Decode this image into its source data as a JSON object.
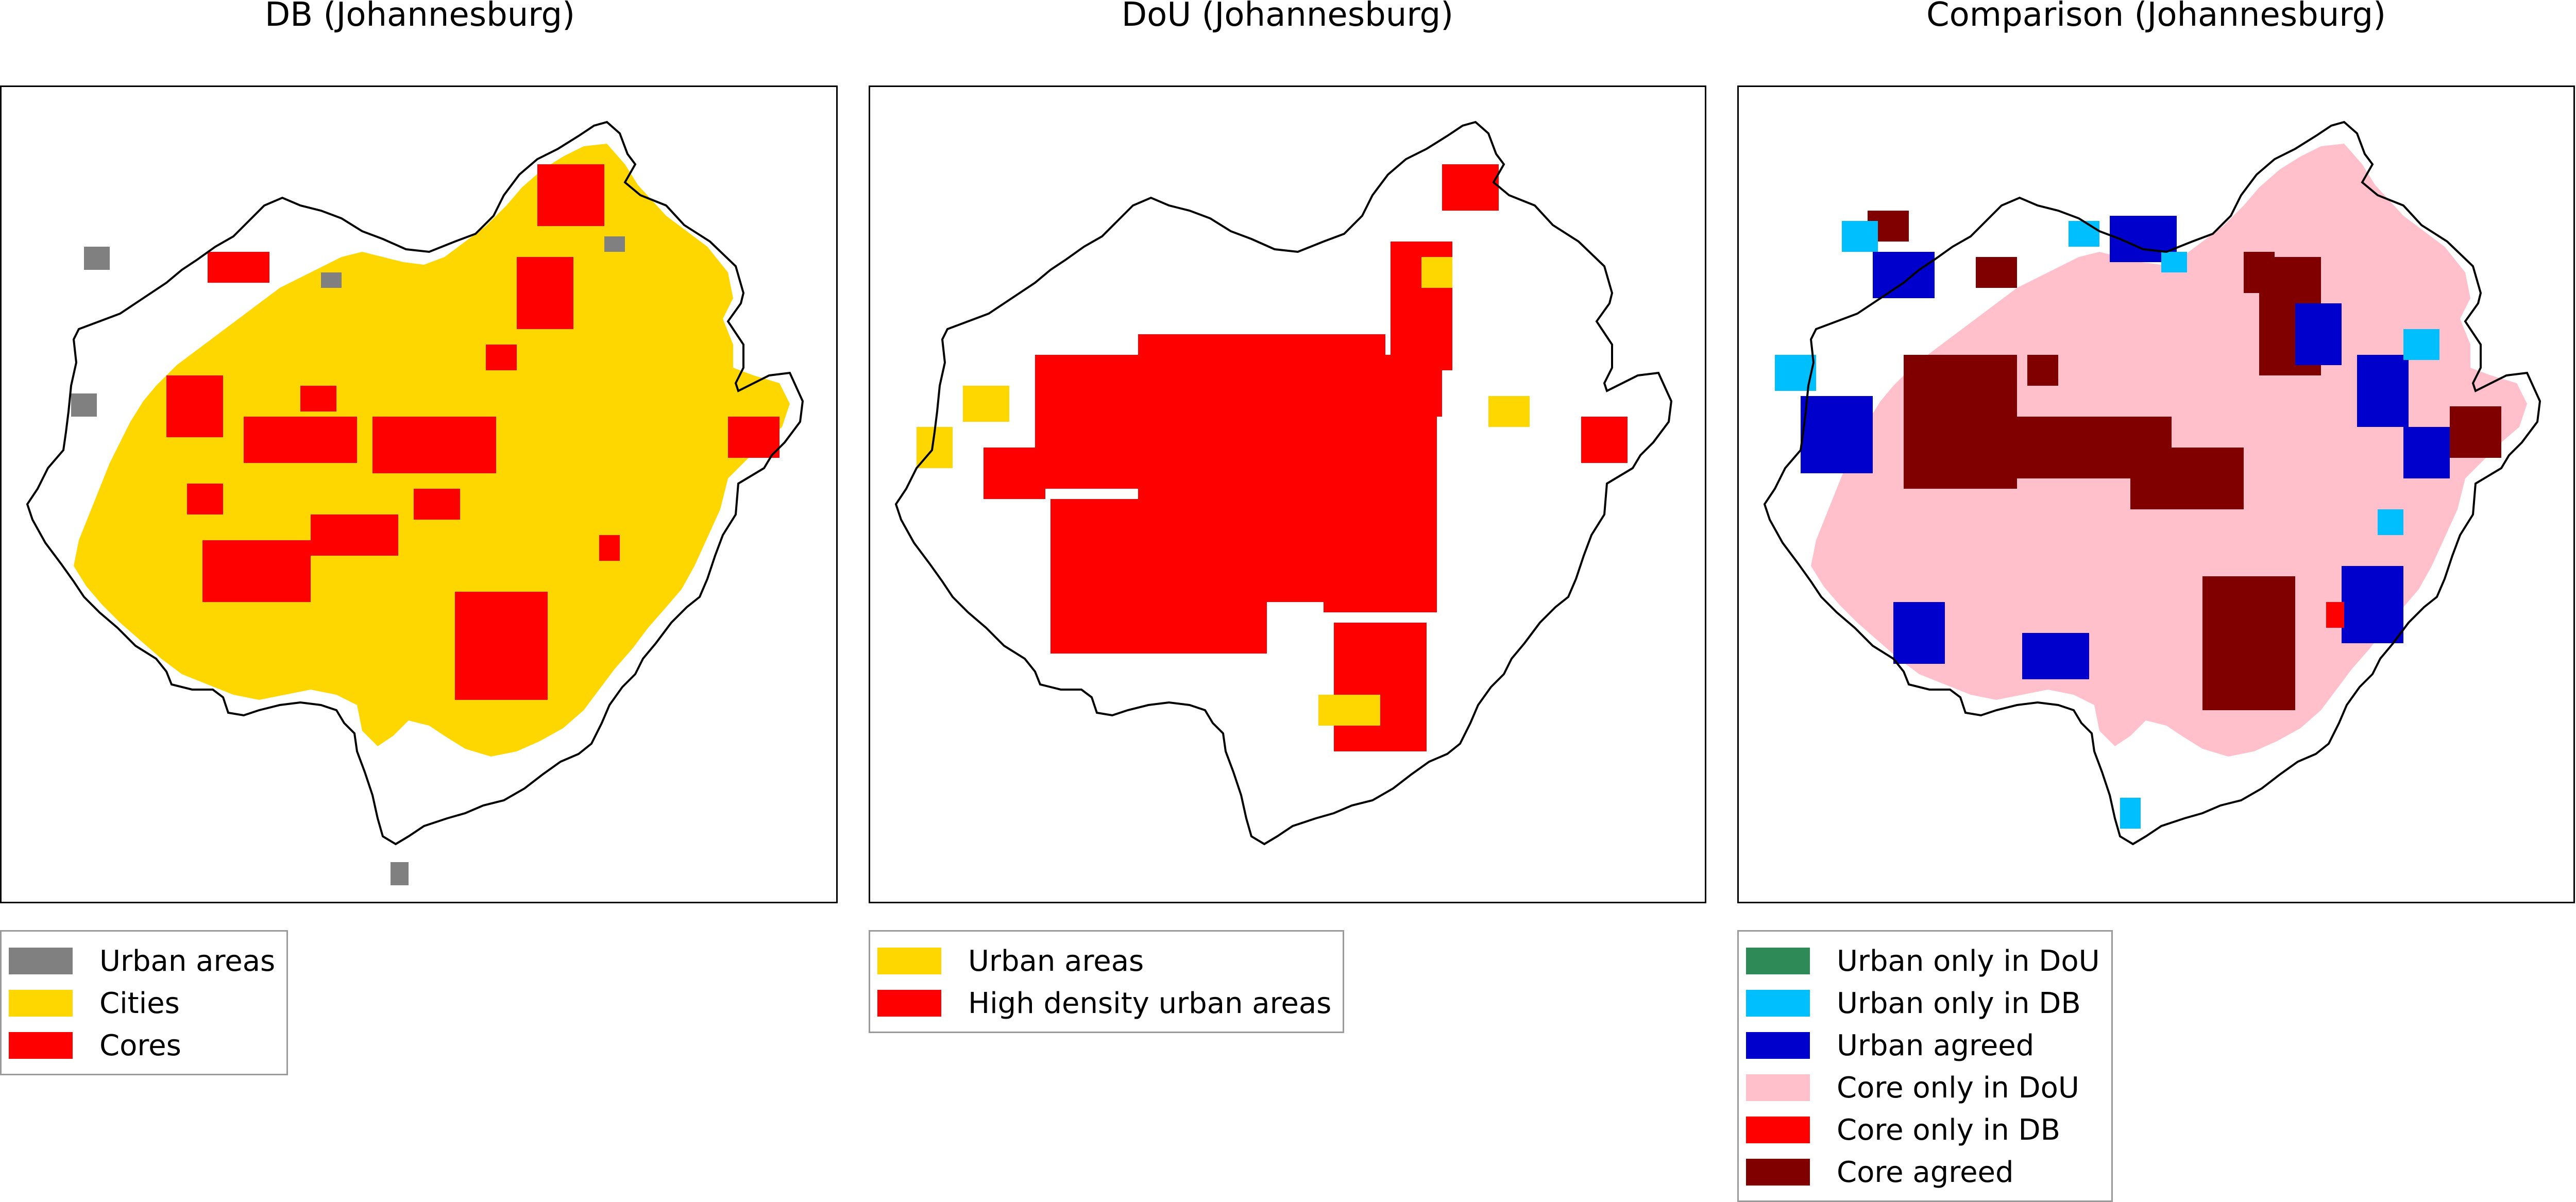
{
  "panels": [
    {
      "title": "DB (Johannesburg)",
      "legend": [
        {
          "label": "Urban areas",
          "color": "#808080"
        },
        {
          "label": "Cities",
          "color": "#ffd700"
        },
        {
          "label": "Cores",
          "color": "#ff0000"
        }
      ]
    },
    {
      "title": "DoU (Johannesburg)",
      "legend": [
        {
          "label": "Urban areas",
          "color": "#ffd700"
        },
        {
          "label": "High density urban areas",
          "color": "#ff0000"
        }
      ]
    },
    {
      "title": "Comparison (Johannesburg)",
      "legend": [
        {
          "label": "Urban only in DoU",
          "color": "#2e8b57"
        },
        {
          "label": "Urban only in DB",
          "color": "#00bfff"
        },
        {
          "label": "Urban agreed",
          "color": "#0000cd"
        },
        {
          "label": "Core only in DoU",
          "color": "#ffc0cb"
        },
        {
          "label": "Core only in DB",
          "color": "#ff0000"
        },
        {
          "label": "Core agreed",
          "color": "#800000"
        }
      ]
    }
  ]
}
